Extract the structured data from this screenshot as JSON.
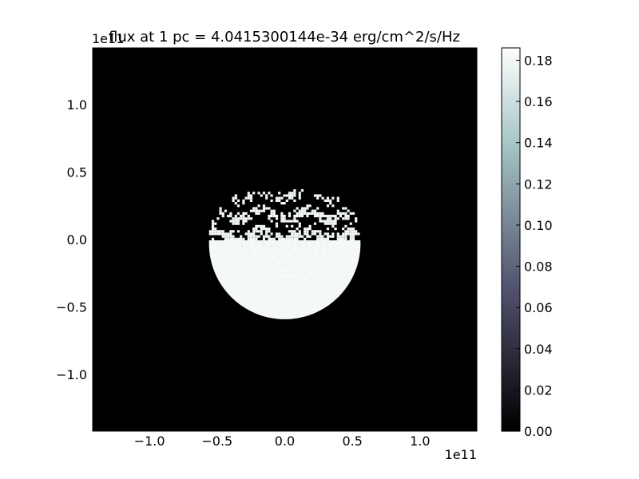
{
  "chart_data": {
    "type": "heatmap",
    "title": "flux at 1 pc = 4.0415300144e-34 erg/cm^2/s/Hz",
    "xlabel": "",
    "ylabel": "",
    "x_offset_text": "1e11",
    "y_offset_text": "1e11",
    "xlim": [
      -1.42,
      1.42
    ],
    "ylim": [
      -1.42,
      1.42
    ],
    "x_ticks": [
      -1.0,
      -0.5,
      0.0,
      0.5,
      1.0
    ],
    "x_tick_labels": [
      "−1.0",
      "−0.5",
      "0.0",
      "0.5",
      "1.0"
    ],
    "y_ticks": [
      -1.0,
      -0.5,
      0.0,
      0.5,
      1.0
    ],
    "y_tick_labels": [
      "−1.0",
      "−0.5",
      "0.0",
      "0.5",
      "1.0"
    ],
    "colormap": "bone",
    "colorbar": {
      "range": [
        0.0,
        0.186
      ],
      "ticks": [
        0.0,
        0.02,
        0.04,
        0.06,
        0.08,
        0.1,
        0.12,
        0.14,
        0.16,
        0.18
      ],
      "tick_labels": [
        "0.00",
        "0.02",
        "0.04",
        "0.06",
        "0.08",
        "0.10",
        "0.12",
        "0.14",
        "0.16",
        "0.18"
      ]
    },
    "background_value": 0.0,
    "feature": {
      "shape": "disk",
      "center": [
        0.0,
        -0.03
      ],
      "radius": 0.56,
      "lower_half_value": 0.18,
      "upper_half": "banded speckle pattern alternating 0.0 and 0.18",
      "upper_edge_max_y": 0.36
    },
    "grid": false
  }
}
